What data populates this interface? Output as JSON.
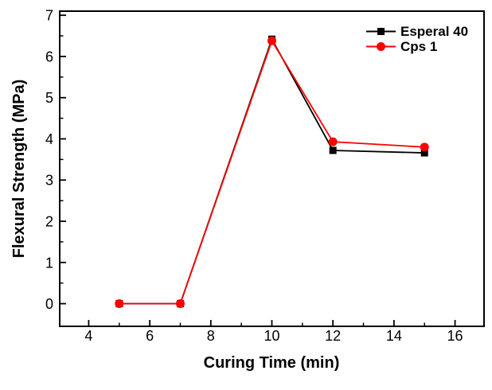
{
  "chart_data": {
    "type": "line",
    "title": "",
    "xlabel": "Curing Time (min)",
    "ylabel": "Flexural Strength (MPa)",
    "x": [
      5,
      7,
      10,
      12,
      15
    ],
    "series": [
      {
        "name": "Esperal 40",
        "color": "#000000",
        "marker": "square",
        "values": [
          0,
          0,
          6.42,
          3.72,
          3.66
        ]
      },
      {
        "name": "Cps 1",
        "color": "#ff0000",
        "marker": "circle",
        "values": [
          0,
          0,
          6.38,
          3.93,
          3.8
        ]
      }
    ],
    "xlim": [
      3.05,
      16.95
    ],
    "ylim": [
      -0.55,
      7.1
    ],
    "x_ticks": [
      4,
      6,
      8,
      10,
      12,
      14,
      16
    ],
    "y_ticks": [
      0,
      1,
      2,
      3,
      4,
      5,
      6,
      7
    ],
    "x_minor_ticks": [
      5,
      7,
      9,
      11,
      13,
      15
    ],
    "y_minor_ticks": [
      0.5,
      1.5,
      2.5,
      3.5,
      4.5,
      5.5,
      6.5
    ],
    "grid": false,
    "legend_position": "top-right-inside",
    "frame": "full-box",
    "tick_direction": "in"
  }
}
